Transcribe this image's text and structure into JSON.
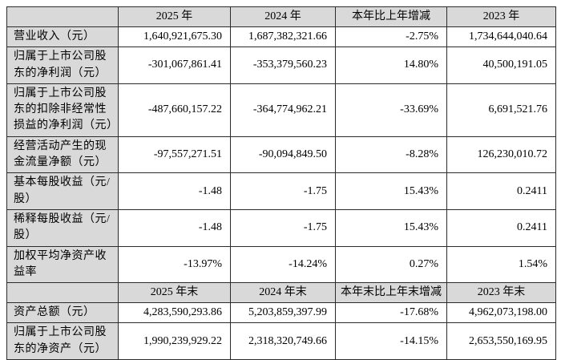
{
  "table": {
    "header1": {
      "c0": "",
      "c1": "2025 年",
      "c2": "2024 年",
      "c3": "本年比上年增减",
      "c4": "2023 年"
    },
    "rows1": [
      {
        "label": "营业收入（元）",
        "c1": "1,640,921,675.30",
        "c2": "1,687,382,321.66",
        "c3": "-2.75%",
        "c4": "1,734,644,040.64"
      },
      {
        "label": "归属于上市公司股东的净利润（元）",
        "c1": "-301,067,861.41",
        "c2": "-353,379,560.23",
        "c3": "14.80%",
        "c4": "40,500,191.05"
      },
      {
        "label": "归属于上市公司股东的扣除非经常性损益的净利润（元）",
        "c1": "-487,660,157.22",
        "c2": "-364,774,962.21",
        "c3": "-33.69%",
        "c4": "6,691,521.76"
      },
      {
        "label": "经营活动产生的现金流量净额（元）",
        "c1": "-97,557,271.51",
        "c2": "-90,094,849.50",
        "c3": "-8.28%",
        "c4": "126,230,010.72"
      },
      {
        "label": "基本每股收益（元/股）",
        "c1": "-1.48",
        "c2": "-1.75",
        "c3": "15.43%",
        "c4": "0.2411"
      },
      {
        "label": "稀释每股收益（元/股）",
        "c1": "-1.48",
        "c2": "-1.75",
        "c3": "15.43%",
        "c4": "0.2411"
      },
      {
        "label": "加权平均净资产收益率",
        "c1": "-13.97%",
        "c2": "-14.24%",
        "c3": "0.27%",
        "c4": "1.54%"
      }
    ],
    "header2": {
      "c0": "",
      "c1": "2025 年末",
      "c2": "2024 年末",
      "c3": "本年末比上年末增减",
      "c4": "2023 年末"
    },
    "rows2": [
      {
        "label": "资产总额（元）",
        "c1": "4,283,590,293.86",
        "c2": "5,203,859,397.99",
        "c3": "-17.68%",
        "c4": "4,962,073,198.00"
      },
      {
        "label": "归属于上市公司股东的净资产（元）",
        "c1": "1,990,239,929.22",
        "c2": "2,318,320,749.66",
        "c3": "-14.15%",
        "c4": "2,653,550,169.95"
      }
    ],
    "colors": {
      "header_bg": "#d9d9d9",
      "label_bg": "#d9d9d9",
      "border": "#2b2b2b",
      "cell_bg": "#ffffff"
    }
  }
}
